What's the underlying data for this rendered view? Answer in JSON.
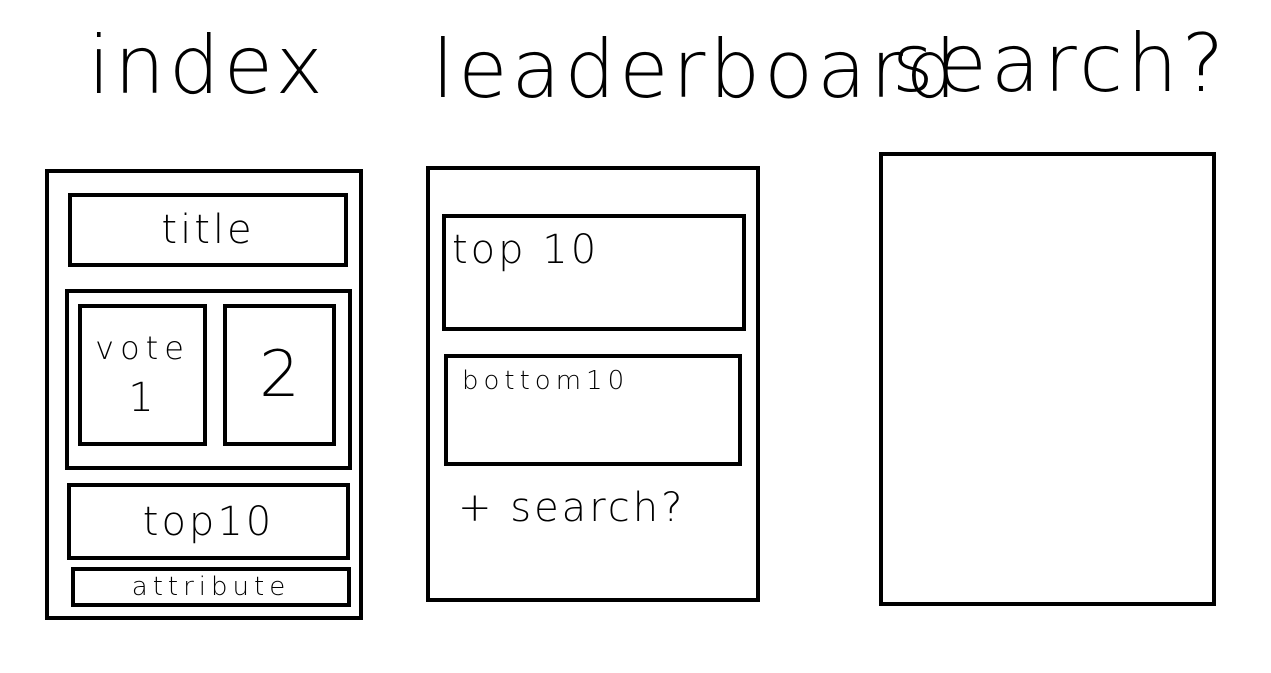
{
  "headings": {
    "index": "index",
    "leaderboard": "leaderboard",
    "search": "search?"
  },
  "index_page": {
    "title_box": "title",
    "vote_box_1": {
      "line1": "vote",
      "line2": "1"
    },
    "vote_box_2": "2",
    "top10_box": "top10",
    "attribute_box": "attribute"
  },
  "leaderboard_page": {
    "top10_box": "top 10",
    "bottom10_box": "bottom10",
    "note": "+ search?"
  },
  "search_page": {}
}
